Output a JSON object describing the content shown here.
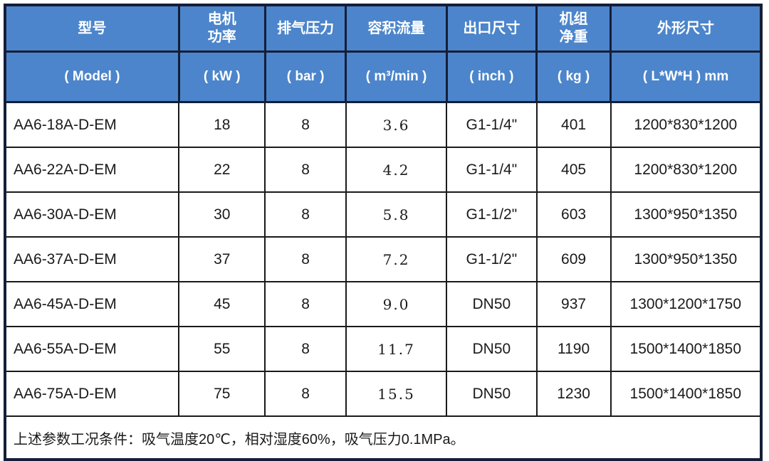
{
  "theme": {
    "header_bg": "#4c85cb",
    "header_text": "#ffffff",
    "frame_border": "#141e38",
    "cell_border": "#1a1a1a",
    "body_bg": "#ffffff",
    "body_text": "#1a1a1a"
  },
  "table": {
    "column_keys": [
      "model",
      "motor_power",
      "discharge_pressure",
      "volume_flow",
      "outlet_size",
      "net_weight",
      "dimensions"
    ],
    "columns": [
      {
        "key": "model",
        "title": "型号",
        "unit": "( Model )"
      },
      {
        "key": "motor_power",
        "title": "电机\n功率",
        "unit": "( kW )"
      },
      {
        "key": "discharge_pressure",
        "title": "排气压力",
        "unit": "( bar )"
      },
      {
        "key": "volume_flow",
        "title": "容积流量",
        "unit": "( m³/min )"
      },
      {
        "key": "outlet_size",
        "title": "出口尺寸",
        "unit": "( inch )"
      },
      {
        "key": "net_weight",
        "title": "机组\n净重",
        "unit": "( kg )"
      },
      {
        "key": "dimensions",
        "title": "外形尺寸",
        "unit": "( L*W*H ) mm"
      }
    ],
    "rows": [
      {
        "model": "AA6-18A-D-EM",
        "motor_power": "18",
        "discharge_pressure": "8",
        "volume_flow": "3.6",
        "outlet_size": "G1-1/4\"",
        "net_weight": "401",
        "dimensions": "1200*830*1200"
      },
      {
        "model": "AA6-22A-D-EM",
        "motor_power": "22",
        "discharge_pressure": "8",
        "volume_flow": "4.2",
        "outlet_size": "G1-1/4\"",
        "net_weight": "405",
        "dimensions": "1200*830*1200"
      },
      {
        "model": "AA6-30A-D-EM",
        "motor_power": "30",
        "discharge_pressure": "8",
        "volume_flow": "5.8",
        "outlet_size": "G1-1/2\"",
        "net_weight": "603",
        "dimensions": "1300*950*1350"
      },
      {
        "model": "AA6-37A-D-EM",
        "motor_power": "37",
        "discharge_pressure": "8",
        "volume_flow": "7.2",
        "outlet_size": "G1-1/2\"",
        "net_weight": "609",
        "dimensions": "1300*950*1350"
      },
      {
        "model": "AA6-45A-D-EM",
        "motor_power": "45",
        "discharge_pressure": "8",
        "volume_flow": "9.0",
        "outlet_size": "DN50",
        "net_weight": "937",
        "dimensions": "1300*1200*1750"
      },
      {
        "model": "AA6-55A-D-EM",
        "motor_power": "55",
        "discharge_pressure": "8",
        "volume_flow": "11.7",
        "outlet_size": "DN50",
        "net_weight": "1190",
        "dimensions": "1500*1400*1850"
      },
      {
        "model": "AA6-75A-D-EM",
        "motor_power": "75",
        "discharge_pressure": "8",
        "volume_flow": "15.5",
        "outlet_size": "DN50",
        "net_weight": "1230",
        "dimensions": "1500*1400*1850"
      }
    ],
    "footnote": "上述参数工况条件：吸气温度20℃，相对湿度60%，吸气压力0.1MPa。"
  },
  "chart_data": {
    "type": "table",
    "title": "AA6 series specification table",
    "categories": [
      "AA6-18A-D-EM",
      "AA6-22A-D-EM",
      "AA6-30A-D-EM",
      "AA6-37A-D-EM",
      "AA6-45A-D-EM",
      "AA6-55A-D-EM",
      "AA6-75A-D-EM"
    ],
    "series": [
      {
        "name": "电机功率 (kW)",
        "values": [
          18,
          22,
          30,
          37,
          45,
          55,
          75
        ]
      },
      {
        "name": "排气压力 (bar)",
        "values": [
          8,
          8,
          8,
          8,
          8,
          8,
          8
        ]
      },
      {
        "name": "容积流量 (m³/min)",
        "values": [
          3.6,
          4.2,
          5.8,
          7.2,
          9.0,
          11.7,
          15.5
        ]
      },
      {
        "name": "机组净重 (kg)",
        "values": [
          401,
          405,
          603,
          609,
          937,
          1190,
          1230
        ]
      }
    ]
  }
}
